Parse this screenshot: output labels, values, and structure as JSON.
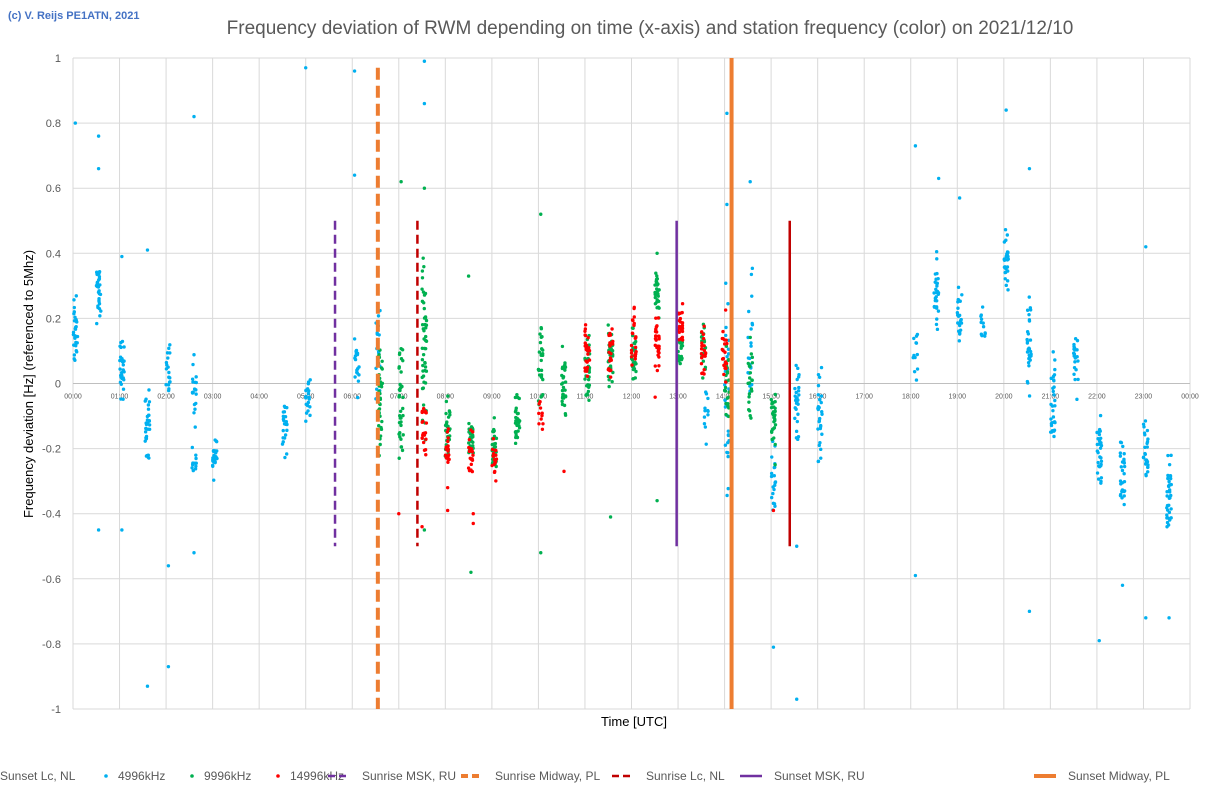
{
  "credit": "(c) V. Reijs  PE1ATN, 2021",
  "chart_data": {
    "type": "scatter",
    "title": "Frequency deviation of RWM depending on time (x-axis) and station frequency (color) on 2021/12/10",
    "xlabel": "Time [UTC]",
    "ylabel": "Frequency deviation [Hz] (referenced to 5Mhz)",
    "xlim": [
      0,
      24
    ],
    "ylim": [
      -1,
      1
    ],
    "grid": "vertical-hourly and horizontal-0.2",
    "y_ticks": [
      "1",
      "0.8",
      "0.6",
      "0.4",
      "0.2",
      "0",
      "-0.2",
      "-0.4",
      "-0.6",
      "-0.8",
      "-1"
    ],
    "y_tick_values": [
      1,
      0.8,
      0.6,
      0.4,
      0.2,
      0,
      -0.2,
      -0.4,
      -0.6,
      -0.8,
      -1
    ],
    "x_ticks": [
      "00:00",
      "01:00",
      "02:00",
      "03:00",
      "04:00",
      "05:00",
      "06:00",
      "07:00",
      "08:00",
      "09:00",
      "10:00",
      "11:00",
      "12:00",
      "13:00",
      "14:00",
      "15:00",
      "16:00",
      "17:00",
      "18:00",
      "19:00",
      "20:00",
      "21:00",
      "22:00",
      "23:00",
      "00:00"
    ],
    "x_tick_values": [
      0,
      1,
      2,
      3,
      4,
      5,
      6,
      7,
      8,
      9,
      10,
      11,
      12,
      13,
      14,
      15,
      16,
      17,
      18,
      19,
      20,
      21,
      22,
      23,
      24
    ],
    "series": [
      {
        "name": "4996kHz",
        "kind": "points",
        "color": "#00b0f0",
        "clusters": [
          {
            "x": 0.05,
            "center": 0.15,
            "spread": 0.1,
            "n": 30
          },
          {
            "x": 0.55,
            "center": 0.28,
            "spread": 0.08,
            "n": 30
          },
          {
            "x": 1.05,
            "center": 0.04,
            "spread": 0.08,
            "n": 28
          },
          {
            "x": 1.6,
            "center": -0.12,
            "spread": 0.1,
            "n": 30
          },
          {
            "x": 2.05,
            "center": 0.05,
            "spread": 0.08,
            "n": 18
          },
          {
            "x": 2.6,
            "center": -0.04,
            "spread": 0.1,
            "n": 18
          },
          {
            "x": 2.6,
            "center": -0.25,
            "spread": 0.05,
            "n": 12
          },
          {
            "x": 3.05,
            "center": -0.22,
            "spread": 0.06,
            "n": 26
          },
          {
            "x": 4.55,
            "center": -0.12,
            "spread": 0.08,
            "n": 22
          },
          {
            "x": 5.05,
            "center": -0.05,
            "spread": 0.06,
            "n": 20
          },
          {
            "x": 6.1,
            "center": 0.05,
            "spread": 0.1,
            "n": 18
          },
          {
            "x": 6.55,
            "center": 0.1,
            "spread": 0.15,
            "n": 18
          },
          {
            "x": 13.6,
            "center": -0.1,
            "spread": 0.1,
            "n": 12
          },
          {
            "x": 14.05,
            "center": 0.0,
            "spread": 0.25,
            "n": 30
          },
          {
            "x": 14.55,
            "center": 0.15,
            "spread": 0.2,
            "n": 20
          },
          {
            "x": 15.05,
            "center": -0.3,
            "spread": 0.12,
            "n": 20
          },
          {
            "x": 15.55,
            "center": -0.05,
            "spread": 0.1,
            "n": 30
          },
          {
            "x": 16.05,
            "center": -0.1,
            "spread": 0.12,
            "n": 30
          },
          {
            "x": 18.1,
            "center": 0.1,
            "spread": 0.08,
            "n": 12
          },
          {
            "x": 18.55,
            "center": 0.28,
            "spread": 0.1,
            "n": 30
          },
          {
            "x": 19.05,
            "center": 0.2,
            "spread": 0.08,
            "n": 22
          },
          {
            "x": 19.55,
            "center": 0.18,
            "spread": 0.05,
            "n": 12
          },
          {
            "x": 20.05,
            "center": 0.38,
            "spread": 0.08,
            "n": 30
          },
          {
            "x": 20.55,
            "center": 0.1,
            "spread": 0.12,
            "n": 30
          },
          {
            "x": 21.05,
            "center": -0.05,
            "spread": 0.15,
            "n": 30
          },
          {
            "x": 21.55,
            "center": 0.05,
            "spread": 0.1,
            "n": 22
          },
          {
            "x": 22.05,
            "center": -0.22,
            "spread": 0.1,
            "n": 30
          },
          {
            "x": 22.55,
            "center": -0.3,
            "spread": 0.1,
            "n": 30
          },
          {
            "x": 23.05,
            "center": -0.22,
            "spread": 0.1,
            "n": 30
          },
          {
            "x": 23.55,
            "center": -0.35,
            "spread": 0.12,
            "n": 35
          }
        ],
        "outliers": [
          [
            0.05,
            0.8
          ],
          [
            0.55,
            0.76
          ],
          [
            0.55,
            0.66
          ],
          [
            0.55,
            -0.45
          ],
          [
            1.05,
            0.39
          ],
          [
            1.05,
            -0.45
          ],
          [
            1.6,
            0.41
          ],
          [
            1.6,
            -0.93
          ],
          [
            2.05,
            -0.87
          ],
          [
            2.05,
            -0.56
          ],
          [
            2.6,
            0.82
          ],
          [
            2.6,
            -0.52
          ],
          [
            5.0,
            0.97
          ],
          [
            6.05,
            0.96
          ],
          [
            6.05,
            0.64
          ],
          [
            7.55,
            0.99
          ],
          [
            7.55,
            0.86
          ],
          [
            14.05,
            0.83
          ],
          [
            14.05,
            0.55
          ],
          [
            14.55,
            0.62
          ],
          [
            15.05,
            -0.81
          ],
          [
            15.55,
            -0.97
          ],
          [
            15.55,
            -0.5
          ],
          [
            18.1,
            0.73
          ],
          [
            18.1,
            -0.59
          ],
          [
            18.6,
            0.63
          ],
          [
            19.05,
            0.57
          ],
          [
            20.05,
            0.84
          ],
          [
            20.55,
            0.66
          ],
          [
            20.55,
            -0.7
          ],
          [
            22.05,
            -0.79
          ],
          [
            22.55,
            -0.62
          ],
          [
            23.05,
            0.42
          ],
          [
            23.05,
            -0.72
          ],
          [
            23.55,
            -0.72
          ]
        ]
      },
      {
        "name": "9996kHz",
        "kind": "points",
        "color": "#00b050",
        "clusters": [
          {
            "x": 6.6,
            "center": -0.05,
            "spread": 0.18,
            "n": 40
          },
          {
            "x": 7.05,
            "center": -0.05,
            "spread": 0.18,
            "n": 36
          },
          {
            "x": 7.55,
            "center": 0.1,
            "spread": 0.25,
            "n": 50
          },
          {
            "x": 8.05,
            "center": -0.15,
            "spread": 0.08,
            "n": 30
          },
          {
            "x": 8.55,
            "center": -0.17,
            "spread": 0.08,
            "n": 30
          },
          {
            "x": 9.05,
            "center": -0.2,
            "spread": 0.07,
            "n": 30
          },
          {
            "x": 9.55,
            "center": -0.1,
            "spread": 0.08,
            "n": 30
          },
          {
            "x": 10.05,
            "center": 0.05,
            "spread": 0.1,
            "n": 30
          },
          {
            "x": 10.55,
            "center": 0.0,
            "spread": 0.1,
            "n": 30
          },
          {
            "x": 11.05,
            "center": 0.05,
            "spread": 0.1,
            "n": 30
          },
          {
            "x": 11.55,
            "center": 0.1,
            "spread": 0.12,
            "n": 30
          },
          {
            "x": 12.05,
            "center": 0.1,
            "spread": 0.1,
            "n": 30
          },
          {
            "x": 12.55,
            "center": 0.27,
            "spread": 0.06,
            "n": 30
          },
          {
            "x": 13.05,
            "center": 0.1,
            "spread": 0.06,
            "n": 20
          },
          {
            "x": 13.55,
            "center": 0.1,
            "spread": 0.08,
            "n": 22
          },
          {
            "x": 14.05,
            "center": 0.0,
            "spread": 0.12,
            "n": 25
          },
          {
            "x": 14.55,
            "center": 0.0,
            "spread": 0.12,
            "n": 22
          },
          {
            "x": 15.05,
            "center": -0.1,
            "spread": 0.12,
            "n": 30
          }
        ],
        "outliers": [
          [
            7.05,
            0.62
          ],
          [
            7.55,
            0.6
          ],
          [
            7.55,
            -0.45
          ],
          [
            8.5,
            0.33
          ],
          [
            8.55,
            -0.58
          ],
          [
            10.05,
            0.52
          ],
          [
            10.05,
            -0.52
          ],
          [
            11.55,
            -0.41
          ],
          [
            12.55,
            -0.36
          ],
          [
            12.55,
            0.4
          ]
        ]
      },
      {
        "name": "14996kHz",
        "kind": "points",
        "color": "#ff0000",
        "clusters": [
          {
            "x": 7.55,
            "center": -0.14,
            "spread": 0.08,
            "n": 22
          },
          {
            "x": 8.05,
            "center": -0.2,
            "spread": 0.06,
            "n": 18
          },
          {
            "x": 8.55,
            "center": -0.22,
            "spread": 0.06,
            "n": 18
          },
          {
            "x": 9.05,
            "center": -0.23,
            "spread": 0.05,
            "n": 18
          },
          {
            "x": 10.05,
            "center": -0.1,
            "spread": 0.08,
            "n": 10
          },
          {
            "x": 11.05,
            "center": 0.1,
            "spread": 0.1,
            "n": 25
          },
          {
            "x": 11.55,
            "center": 0.1,
            "spread": 0.08,
            "n": 20
          },
          {
            "x": 12.05,
            "center": 0.15,
            "spread": 0.1,
            "n": 25
          },
          {
            "x": 12.55,
            "center": 0.1,
            "spread": 0.12,
            "n": 30
          },
          {
            "x": 13.05,
            "center": 0.18,
            "spread": 0.05,
            "n": 25
          },
          {
            "x": 13.55,
            "center": 0.1,
            "spread": 0.06,
            "n": 22
          },
          {
            "x": 14.0,
            "center": 0.1,
            "spread": 0.1,
            "n": 22
          }
        ],
        "outliers": [
          [
            7.0,
            -0.4
          ],
          [
            7.5,
            -0.44
          ],
          [
            8.05,
            -0.39
          ],
          [
            8.05,
            -0.32
          ],
          [
            8.6,
            -0.4
          ],
          [
            8.6,
            -0.43
          ],
          [
            10.55,
            -0.27
          ],
          [
            15.05,
            -0.39
          ]
        ]
      },
      {
        "name": "Sunrise MSK, RU",
        "kind": "line",
        "color": "#7030a0",
        "style": "dashed",
        "x": 5.63,
        "y": [
          -0.5,
          0.5
        ]
      },
      {
        "name": "Sunrise Midway, PL",
        "kind": "line",
        "color": "#ed7d31",
        "style": "dashed",
        "x": 6.55,
        "y": [
          -1,
          0.97
        ]
      },
      {
        "name": "Sunrise Lc, NL",
        "kind": "line",
        "color": "#c00000",
        "style": "dashed",
        "x": 7.4,
        "y": [
          -0.5,
          0.5
        ]
      },
      {
        "name": "Sunset MSK, RU",
        "kind": "line",
        "color": "#7030a0",
        "style": "solid",
        "x": 12.97,
        "y": [
          -0.5,
          0.5
        ]
      },
      {
        "name": "Sunset Midway, PL",
        "kind": "line",
        "color": "#ed7d31",
        "style": "solid",
        "x": 14.15,
        "y": [
          -1,
          1
        ]
      },
      {
        "name": "Sunset Lc, NL",
        "kind": "line",
        "color": "#c00000",
        "style": "solid",
        "x": 15.4,
        "y": [
          -0.5,
          0.5
        ]
      }
    ]
  }
}
